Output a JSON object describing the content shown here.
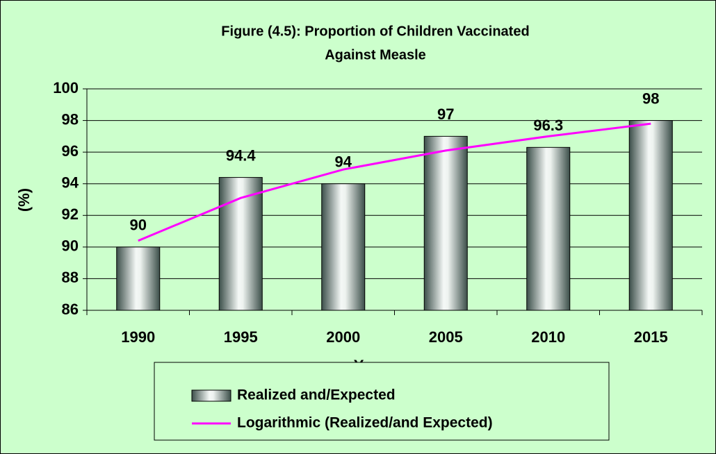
{
  "chart_data": {
    "type": "bar",
    "title": "Figure (4.5): Proportion of Children Vaccinated",
    "subtitle": "Against Measle",
    "x_label": "Year",
    "y_label": "(%)",
    "categories": [
      "1990",
      "1995",
      "2000",
      "2005",
      "2010",
      "2015"
    ],
    "series": [
      {
        "name": "Realized and/Expected",
        "color": "#9aaea6",
        "values": [
          90,
          94.4,
          94,
          97,
          96.3,
          98
        ]
      },
      {
        "name": "Logarithmic (Realized/and Expected)",
        "type": "line",
        "color": "#ff00ff",
        "values": [
          90.4,
          93.1,
          94.9,
          96.1,
          97.0,
          97.8
        ]
      }
    ],
    "ylim": [
      86,
      100
    ],
    "yticks": [
      86,
      88,
      90,
      92,
      94,
      96,
      98,
      100
    ]
  }
}
